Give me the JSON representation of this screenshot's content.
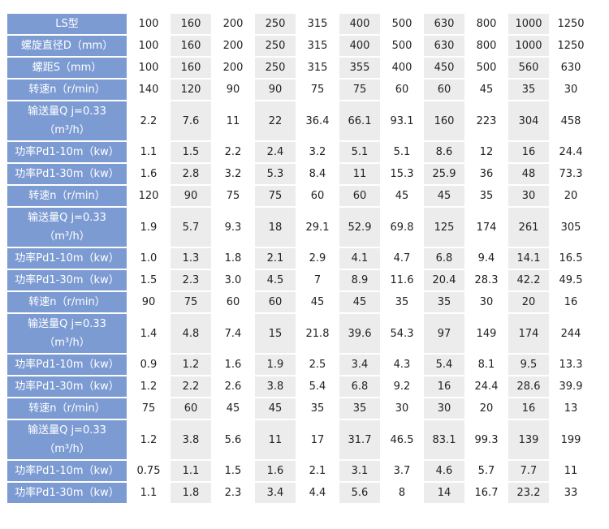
{
  "table": {
    "rows": [
      {
        "label": [
          "LS型"
        ],
        "cells": [
          "100",
          "160",
          "200",
          "250",
          "315",
          "400",
          "500",
          "630",
          "800",
          "1000",
          "1250"
        ]
      },
      {
        "label": [
          "螺旋直径D（mm）"
        ],
        "cells": [
          "100",
          "160",
          "200",
          "250",
          "315",
          "400",
          "500",
          "630",
          "800",
          "1000",
          "1250"
        ]
      },
      {
        "label": [
          "螺距S（mm）"
        ],
        "cells": [
          "100",
          "160",
          "200",
          "250",
          "315",
          "355",
          "400",
          "450",
          "500",
          "560",
          "630"
        ]
      },
      {
        "label": [
          "转速n（r/min）"
        ],
        "cells": [
          "140",
          "120",
          "90",
          "90",
          "75",
          "75",
          "60",
          "60",
          "45",
          "35",
          "30"
        ]
      },
      {
        "label": [
          "输送量Q j=0.33",
          "（m³/h）"
        ],
        "cells": [
          "2.2",
          "7.6",
          "11",
          "22",
          "36.4",
          "66.1",
          "93.1",
          "160",
          "223",
          "304",
          "458"
        ]
      },
      {
        "label": [
          "功率Pd1-10m（kw）"
        ],
        "cells": [
          "1.1",
          "1.5",
          "2.2",
          "2.4",
          "3.2",
          "5.1",
          "5.1",
          "8.6",
          "12",
          "16",
          "24.4"
        ]
      },
      {
        "label": [
          "功率Pd1-30m（kw）"
        ],
        "cells": [
          "1.6",
          "2.8",
          "3.2",
          "5.3",
          "8.4",
          "11",
          "15.3",
          "25.9",
          "36",
          "48",
          "73.3"
        ]
      },
      {
        "label": [
          "转速n（r/min）"
        ],
        "cells": [
          "120",
          "90",
          "75",
          "75",
          "60",
          "60",
          "45",
          "45",
          "35",
          "30",
          "20"
        ]
      },
      {
        "label": [
          "输送量Q j=0.33",
          "（m³/h）"
        ],
        "cells": [
          "1.9",
          "5.7",
          "9.3",
          "18",
          "29.1",
          "52.9",
          "69.8",
          "125",
          "174",
          "261",
          "305"
        ]
      },
      {
        "label": [
          "功率Pd1-10m（kw）"
        ],
        "cells": [
          "1.0",
          "1.3",
          "1.8",
          "2.1",
          "2.9",
          "4.1",
          "4.7",
          "6.8",
          "9.4",
          "14.1",
          "16.5"
        ]
      },
      {
        "label": [
          "功率Pd1-30m（kw）"
        ],
        "cells": [
          "1.5",
          "2.3",
          "3.0",
          "4.5",
          "7",
          "8.9",
          "11.6",
          "20.4",
          "28.3",
          "42.2",
          "49.5"
        ]
      },
      {
        "label": [
          "转速n（r/min）"
        ],
        "cells": [
          "90",
          "75",
          "60",
          "60",
          "45",
          "45",
          "35",
          "35",
          "30",
          "20",
          "16"
        ]
      },
      {
        "label": [
          "输送量Q j=0.33",
          "（m³/h）"
        ],
        "cells": [
          "1.4",
          "4.8",
          "7.4",
          "15",
          "21.8",
          "39.6",
          "54.3",
          "97",
          "149",
          "174",
          "244"
        ]
      },
      {
        "label": [
          "功率Pd1-10m（kw）"
        ],
        "cells": [
          "0.9",
          "1.2",
          "1.6",
          "1.9",
          "2.5",
          "3.4",
          "4.3",
          "5.4",
          "8.1",
          "9.5",
          "13.3"
        ]
      },
      {
        "label": [
          "功率Pd1-30m（kw）"
        ],
        "cells": [
          "1.2",
          "2.2",
          "2.6",
          "3.8",
          "5.4",
          "6.8",
          "9.2",
          "16",
          "24.4",
          "28.6",
          "39.9"
        ]
      },
      {
        "label": [
          "转速n（r/min）"
        ],
        "cells": [
          "75",
          "60",
          "45",
          "45",
          "35",
          "35",
          "30",
          "30",
          "20",
          "16",
          "13"
        ]
      },
      {
        "label": [
          "输送量Q j=0.33",
          "（m³/h）"
        ],
        "cells": [
          "1.2",
          "3.8",
          "5.6",
          "11",
          "17",
          "31.7",
          "46.5",
          "83.1",
          "99.3",
          "139",
          "199"
        ]
      },
      {
        "label": [
          "功率Pd1-10m（kw）"
        ],
        "cells": [
          "0.75",
          "1.1",
          "1.5",
          "1.6",
          "2.1",
          "3.1",
          "3.7",
          "4.6",
          "5.7",
          "7.7",
          "11"
        ]
      },
      {
        "label": [
          "功率Pd1-30m（kw）"
        ],
        "cells": [
          "1.1",
          "1.8",
          "2.3",
          "3.4",
          "4.4",
          "5.6",
          "8",
          "14",
          "16.7",
          "23.2",
          "33"
        ]
      }
    ]
  }
}
